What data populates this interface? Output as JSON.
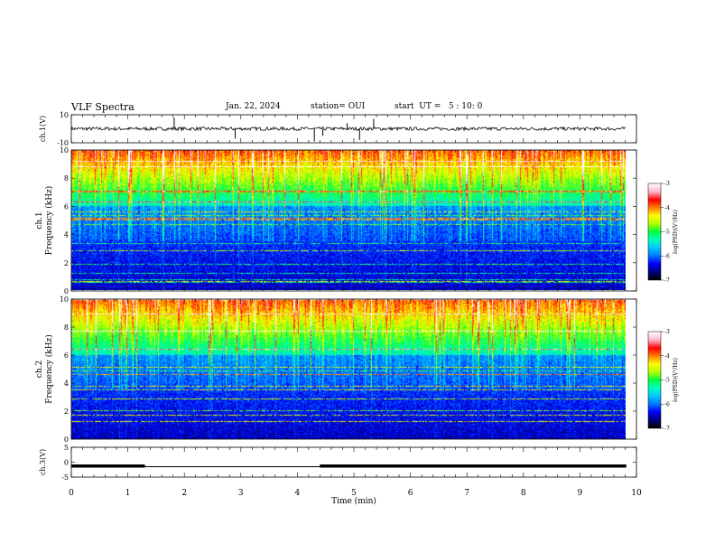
{
  "header": {
    "title": "VLF Spectra",
    "date": "Jan. 22, 2024",
    "station": "station= OUI",
    "start": "start  UT =   5 : 10: 0"
  },
  "colors": {
    "spectrogram_scale": [
      "#000000",
      "#000080",
      "#0000ff",
      "#0078ff",
      "#00c8ff",
      "#00ffc0",
      "#00ff40",
      "#b4ff00",
      "#ffff00",
      "#ff8000",
      "#ff0000",
      "#ffb4c8",
      "#ffffff"
    ],
    "trace": "#000000"
  },
  "chart_data": [
    {
      "type": "line",
      "panel": "channel-1-waveform",
      "ylabel": "ch.1(V)",
      "ylim": [
        -10,
        10
      ],
      "yticks": [
        "10",
        "-10"
      ],
      "xlim": [
        0,
        10
      ],
      "baseline": 0,
      "spikes_x_min": [
        1.82,
        2.9,
        4.3,
        4.45,
        4.88,
        5.1,
        5.35
      ],
      "spikes_y": [
        8,
        -7,
        -9,
        -5,
        4,
        -8,
        7
      ]
    },
    {
      "type": "heatmap",
      "panel": "channel-1-spectrogram",
      "ylabel": "ch.1\nFrequency (kHz)",
      "ylim": [
        0,
        10
      ],
      "yticks": [
        "0",
        "2",
        "4",
        "6",
        "8",
        "10"
      ],
      "xlim": [
        0,
        10
      ],
      "data_end_min": 9.82,
      "colorbar": {
        "label": "log(PSD)(V²/Hz)",
        "range": [
          -7,
          -3
        ],
        "ticks": [
          "-3",
          "-4",
          "-5",
          "-6",
          "-7"
        ]
      }
    },
    {
      "type": "heatmap",
      "panel": "channel-2-spectrogram",
      "ylabel": "ch.2\nFrequency (kHz)",
      "ylim": [
        0,
        10
      ],
      "yticks": [
        "0",
        "2",
        "4",
        "6",
        "8",
        "10"
      ],
      "xlim": [
        0,
        10
      ],
      "data_end_min": 9.82,
      "colorbar": {
        "label": "log(PSD)(V²/Hz)",
        "range": [
          -7,
          -3
        ],
        "ticks": [
          "-3",
          "-4",
          "-5",
          "-6",
          "-7"
        ]
      }
    },
    {
      "type": "line",
      "panel": "channel-3-level",
      "ylabel": "ch.3(V)",
      "ylim": [
        -5,
        5
      ],
      "yticks": [
        "5",
        "0",
        "-5"
      ],
      "xlim": [
        0,
        10
      ],
      "x": [
        0,
        1.3,
        1.3,
        4.4,
        4.4,
        9.82
      ],
      "y": [
        -1.3,
        -1.3,
        -1.5,
        -1.5,
        -1.3,
        -1.3
      ],
      "thick_segments": [
        [
          0,
          1.3
        ],
        [
          4.4,
          9.82
        ]
      ]
    }
  ],
  "xaxis": {
    "label": "Time (min)",
    "ticks": [
      "0",
      "1",
      "2",
      "3",
      "4",
      "5",
      "6",
      "7",
      "8",
      "9",
      "10"
    ]
  }
}
